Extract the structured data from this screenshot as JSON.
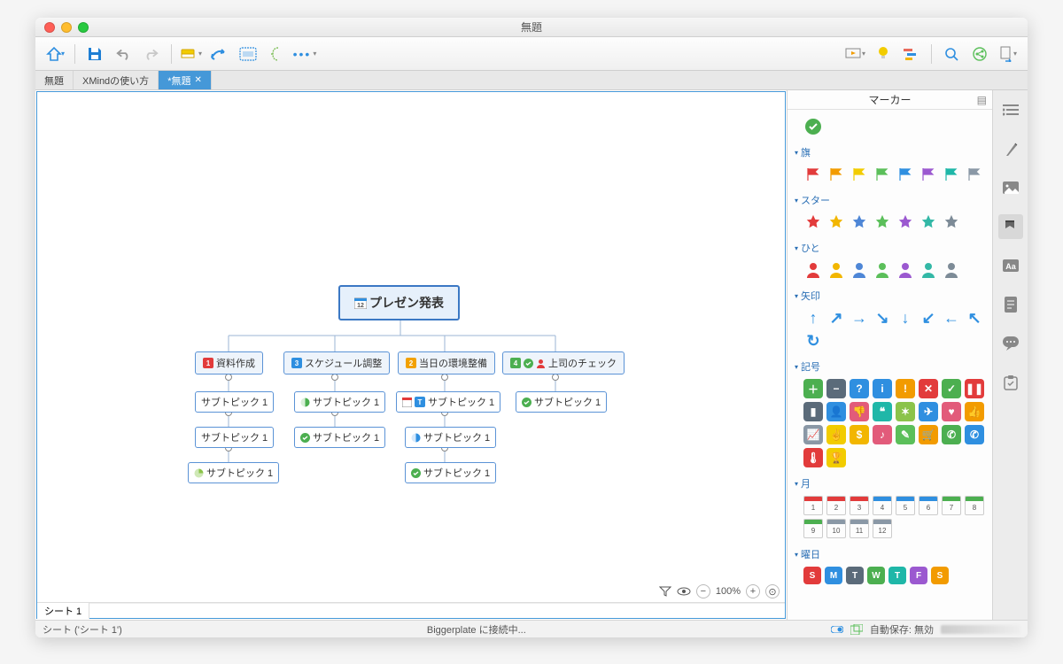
{
  "window": {
    "title": "無題"
  },
  "toolbar": {
    "home_color": "#2f8fe0",
    "save_color": "#1f7fd4",
    "undo_color": "#9a9a9a",
    "redo_color": "#c8c8c8",
    "fill_color": "#f2b600",
    "relation_color": "#2f8fe0",
    "boundary_color": "#2f8fe0",
    "summary_color": "#7fbf5a",
    "more_color": "#2f8fe0",
    "present_color": "#f2b600",
    "idea_color": "#f2cc00",
    "gantt_color": "#e96b5c",
    "search_color": "#2f8fe0",
    "share_color": "#5bbf5a",
    "export_color": "#2f8fe0"
  },
  "tabs": [
    {
      "label": "無題",
      "active": false
    },
    {
      "label": "XMindの使い方",
      "active": false
    },
    {
      "label": "*無題",
      "active": true,
      "closable": true
    }
  ],
  "mindmap": {
    "root": {
      "label": "プレゼン発表",
      "icon_bg": "#e23b3b"
    },
    "mains": [
      {
        "badge_bg": "#e23b3b",
        "badge_txt": "1",
        "label": "資料作成"
      },
      {
        "badge_bg": "#2f8fe0",
        "badge_txt": "3",
        "label": "スケジュール調整"
      },
      {
        "badge_bg": "#f2a100",
        "badge_txt": "2",
        "label": "当日の環境整備"
      },
      {
        "badge_bg": "#4caf50",
        "badge_txt": "4",
        "label": "上司のチェック",
        "extra_check": "#4caf50",
        "extra_person": "#e23b3b"
      }
    ],
    "subs": {
      "col0": [
        {
          "label": "サブトピック 1"
        },
        {
          "label": "サブトピック 1"
        },
        {
          "icon": "pie",
          "icon_c1": "#8bc34a",
          "icon_c2": "#cfe8b6",
          "label": "サブトピック 1"
        }
      ],
      "col1": [
        {
          "icon": "half",
          "icon_c1": "#4caf50",
          "icon_c2": "#d9efd9",
          "label": "サブトピック 1"
        },
        {
          "icon": "dot",
          "icon_color": "#4caf50",
          "label": "サブトピック 1"
        }
      ],
      "col2": [
        {
          "icon": "cal",
          "icon_color": "#e23b3b",
          "icon2": "dow",
          "icon2_bg": "#2f8fe0",
          "icon2_txt": "T",
          "label": "サブトピック 1"
        },
        {
          "icon": "half",
          "icon_c1": "#2f8fe0",
          "icon_c2": "#d6e9fb",
          "label": "サブトピック 1"
        },
        {
          "icon": "dot",
          "icon_color": "#4caf50",
          "label": "サブトピック 1"
        }
      ],
      "col3": [
        {
          "icon": "dot",
          "icon_color": "#4caf50",
          "label": "サブトピック 1"
        }
      ]
    }
  },
  "sheets": {
    "tab": "シート 1"
  },
  "zoom": {
    "value": "100%"
  },
  "markers": {
    "title": "マーカー",
    "check_color": "#4caf50",
    "sections": {
      "flags": {
        "title": "旗",
        "colors": [
          "#e23b3b",
          "#f29b00",
          "#f2cc00",
          "#5bbf5a",
          "#2f8fe0",
          "#9b59d0",
          "#1fb7a8",
          "#8a98a6"
        ]
      },
      "stars": {
        "title": "スター",
        "colors": [
          "#e23b3b",
          "#f2b600",
          "#4e86d6",
          "#5bbf5a",
          "#9b59d0",
          "#33b8a6",
          "#7d8b97"
        ]
      },
      "people": {
        "title": "ひと",
        "colors": [
          "#e23b3b",
          "#f2b600",
          "#4e86d6",
          "#5bbf5a",
          "#9b59d0",
          "#33b8a6",
          "#7d8b97"
        ]
      },
      "arrows": {
        "title": "矢印",
        "color": "#2f8fe0",
        "glyphs": [
          "↑",
          "↗",
          "→",
          "↘",
          "↓",
          "↙",
          "←",
          "↖",
          "↻"
        ]
      },
      "symbols": {
        "title": "記号",
        "row1": [
          {
            "bg": "#4caf50",
            "g": "＋"
          },
          {
            "bg": "#5b6b7a",
            "g": "−"
          },
          {
            "bg": "#2f8fe0",
            "g": "?"
          },
          {
            "bg": "#2f8fe0",
            "g": "i"
          },
          {
            "bg": "#f29b00",
            "g": "!"
          },
          {
            "bg": "#e23b3b",
            "g": "✕"
          },
          {
            "bg": "#4caf50",
            "g": "✓"
          },
          {
            "bg": "#e23b3b",
            "g": "❚❚"
          }
        ],
        "row2": [
          {
            "bg": "#5b6b7a",
            "g": "▮"
          },
          {
            "bg": "#2f8fe0",
            "g": "👤"
          },
          {
            "bg": "#e25b7a",
            "g": "👎"
          },
          {
            "bg": "#1fb7a8",
            "g": "❝"
          },
          {
            "bg": "#8bc34a",
            "g": "✶"
          },
          {
            "bg": "#2f8fe0",
            "g": "✈"
          },
          {
            "bg": "#e25b7a",
            "g": "♥"
          },
          {
            "bg": "#f29b00",
            "g": "👍"
          }
        ],
        "row3": [
          {
            "bg": "#8a98a6",
            "g": "📈"
          },
          {
            "bg": "#f2cc00",
            "g": "✌"
          },
          {
            "bg": "#f2b600",
            "g": "$"
          },
          {
            "bg": "#e25b7a",
            "g": "♪"
          },
          {
            "bg": "#5bbf5a",
            "g": "✎"
          },
          {
            "bg": "#f29b00",
            "g": "🛒"
          },
          {
            "bg": "#4caf50",
            "g": "✆"
          },
          {
            "bg": "#2f8fe0",
            "g": "✆"
          }
        ],
        "row4": [
          {
            "bg": "#e23b3b",
            "g": "🌡"
          },
          {
            "bg": "#f2cc00",
            "g": "🏆"
          }
        ]
      },
      "months": {
        "title": "月",
        "items": [
          {
            "n": "1",
            "c": "#e23b3b"
          },
          {
            "n": "2",
            "c": "#e23b3b"
          },
          {
            "n": "3",
            "c": "#e23b3b"
          },
          {
            "n": "4",
            "c": "#2f8fe0"
          },
          {
            "n": "5",
            "c": "#2f8fe0"
          },
          {
            "n": "6",
            "c": "#2f8fe0"
          },
          {
            "n": "7",
            "c": "#4caf50"
          },
          {
            "n": "8",
            "c": "#4caf50"
          },
          {
            "n": "9",
            "c": "#4caf50"
          },
          {
            "n": "10",
            "c": "#8a98a6"
          },
          {
            "n": "11",
            "c": "#8a98a6"
          },
          {
            "n": "12",
            "c": "#8a98a6"
          }
        ]
      },
      "dow": {
        "title": "曜日",
        "items": [
          {
            "t": "S",
            "c": "#e23b3b"
          },
          {
            "t": "M",
            "c": "#2f8fe0"
          },
          {
            "t": "T",
            "c": "#5b6b7a"
          },
          {
            "t": "W",
            "c": "#4caf50"
          },
          {
            "t": "T",
            "c": "#1fb7a8"
          },
          {
            "t": "F",
            "c": "#9b59d0"
          },
          {
            "t": "S",
            "c": "#f29b00"
          }
        ]
      }
    }
  },
  "statusbar": {
    "left": "シート ('シート 1')",
    "center": "Biggerplate に接続中...",
    "right": "自動保存: 無効"
  }
}
